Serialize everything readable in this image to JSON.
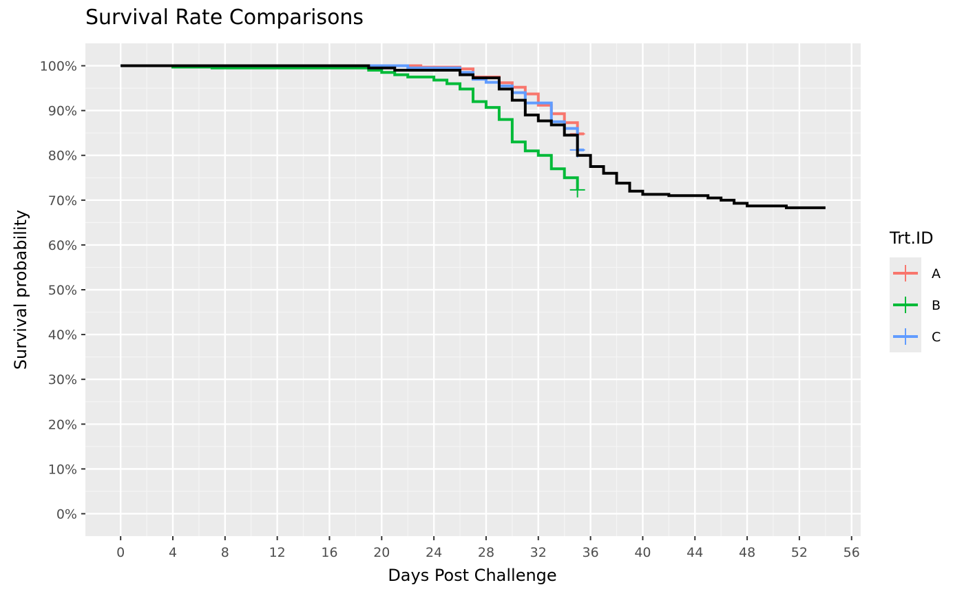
{
  "chart_data": {
    "type": "line",
    "subtype": "kaplan-meier step",
    "title": "Survival Rate Comparisons",
    "xlabel": "Days Post Challenge",
    "ylabel": "Survival probability",
    "xlim": [
      -2.7,
      56.7
    ],
    "ylim": [
      -0.05,
      1.05
    ],
    "x_ticks": [
      0,
      4,
      8,
      12,
      16,
      20,
      24,
      28,
      32,
      36,
      40,
      44,
      48,
      52,
      56
    ],
    "y_ticks": [
      0,
      0.1,
      0.2,
      0.3,
      0.4,
      0.5,
      0.6,
      0.7,
      0.8,
      0.9,
      1.0
    ],
    "y_tick_labels": [
      "0%",
      "10%",
      "20%",
      "30%",
      "40%",
      "50%",
      "60%",
      "70%",
      "80%",
      "90%",
      "100%"
    ],
    "grid": true,
    "background": "#ebebeb",
    "legend": {
      "title": "Trt.ID",
      "position": "right"
    },
    "series": [
      {
        "name": "A",
        "color": "#F8766D",
        "in_legend": true,
        "x": [
          0,
          19,
          23,
          26,
          27,
          29,
          30,
          31,
          32,
          33,
          34,
          35
        ],
        "y": [
          1.0,
          1.0,
          0.997,
          0.993,
          0.975,
          0.962,
          0.952,
          0.937,
          0.912,
          0.893,
          0.873,
          0.848
        ],
        "end_x": 35.5,
        "censor": [
          [
            35,
            0.848
          ]
        ]
      },
      {
        "name": "B",
        "color": "#00BA38",
        "in_legend": true,
        "x": [
          0,
          4,
          7,
          19,
          20,
          21,
          22,
          24,
          25,
          26,
          27,
          28,
          29,
          30,
          31,
          32,
          33,
          34,
          35
        ],
        "y": [
          1.0,
          0.997,
          0.995,
          0.99,
          0.985,
          0.98,
          0.975,
          0.968,
          0.96,
          0.948,
          0.92,
          0.907,
          0.88,
          0.83,
          0.81,
          0.8,
          0.77,
          0.75,
          0.723
        ],
        "end_x": 35,
        "censor": [
          [
            35,
            0.723
          ]
        ]
      },
      {
        "name": "C",
        "color": "#619CFF",
        "in_legend": true,
        "x": [
          0,
          19,
          22,
          26,
          27,
          28,
          29,
          30,
          31,
          33,
          34,
          35
        ],
        "y": [
          1.0,
          1.0,
          0.995,
          0.985,
          0.97,
          0.963,
          0.955,
          0.94,
          0.917,
          0.875,
          0.86,
          0.812
        ],
        "end_x": 35.5,
        "censor": [
          [
            35,
            0.812
          ]
        ]
      },
      {
        "color": "#000000",
        "in_legend": false,
        "x": [
          0,
          19,
          21,
          26,
          27,
          29,
          30,
          31,
          32,
          33,
          34,
          35,
          36,
          37,
          38,
          39,
          40,
          42,
          45,
          46,
          47,
          48,
          51,
          54
        ],
        "y": [
          1.0,
          0.995,
          0.99,
          0.98,
          0.973,
          0.948,
          0.923,
          0.89,
          0.877,
          0.868,
          0.845,
          0.8,
          0.775,
          0.76,
          0.738,
          0.72,
          0.713,
          0.71,
          0.705,
          0.7,
          0.693,
          0.687,
          0.683,
          0.683
        ],
        "end_x": 54
      }
    ]
  }
}
